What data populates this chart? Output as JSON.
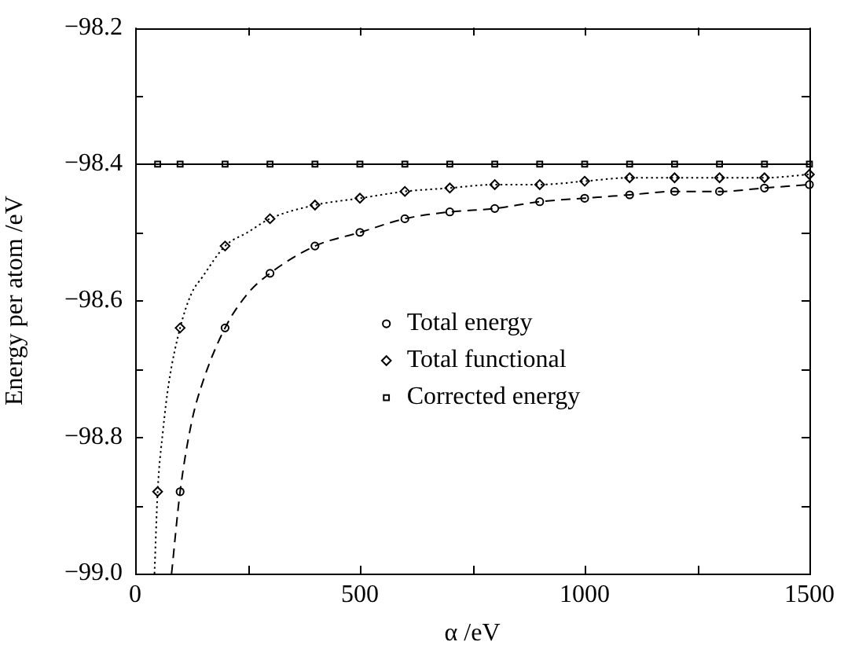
{
  "chart_data": {
    "type": "scatter",
    "xlabel": "α /eV",
    "ylabel": "Energy per atom /eV",
    "xlim": [
      0,
      1500
    ],
    "ylim": [
      -99.0,
      -98.2
    ],
    "xticks": [
      0,
      {
        "value": 250,
        "label": null
      },
      500,
      {
        "value": 750,
        "label": null
      },
      1000,
      {
        "value": 1250,
        "label": null
      },
      1500
    ],
    "yticks": [
      {
        "value": -99.0,
        "label": "−99.0"
      },
      {
        "value": -98.9,
        "label": null
      },
      {
        "value": -98.8,
        "label": "−98.8"
      },
      {
        "value": -98.7,
        "label": null
      },
      {
        "value": -98.6,
        "label": "−98.6"
      },
      {
        "value": -98.5,
        "label": null
      },
      {
        "value": -98.4,
        "label": "−98.4"
      },
      {
        "value": -98.3,
        "label": null
      },
      {
        "value": -98.2,
        "label": "−98.2"
      }
    ],
    "grid": false,
    "legend": "center",
    "series": [
      {
        "type": "line",
        "marker": "none",
        "line_style": "dashed",
        "color": "#000000",
        "x": [
          81,
          100,
          125,
          150,
          200,
          250,
          300,
          400,
          500,
          600,
          700,
          800,
          900,
          1000,
          1100,
          1200,
          1300,
          1400,
          1500
        ],
        "values": [
          -99.0,
          -98.88,
          -98.78,
          -98.72,
          -98.64,
          -98.59,
          -98.56,
          -98.52,
          -98.5,
          -98.48,
          -98.47,
          -98.465,
          -98.455,
          -98.45,
          -98.445,
          -98.44,
          -98.44,
          -98.435,
          -98.43
        ]
      },
      {
        "type": "line",
        "marker": "none",
        "line_style": "dotted",
        "color": "#000000",
        "x": [
          43,
          50,
          62,
          75,
          100,
          125,
          150,
          200,
          250,
          300,
          400,
          500,
          600,
          700,
          800,
          900,
          1000,
          1100,
          1200,
          1300,
          1400,
          1500
        ],
        "values": [
          -99.0,
          -98.88,
          -98.79,
          -98.72,
          -98.64,
          -98.59,
          -98.565,
          -98.52,
          -98.5,
          -98.48,
          -98.46,
          -98.45,
          -98.44,
          -98.435,
          -98.43,
          -98.43,
          -98.425,
          -98.42,
          -98.42,
          -98.42,
          -98.42,
          -98.415
        ]
      },
      {
        "type": "line",
        "marker": "none",
        "line_style": "solid",
        "color": "#000000",
        "x": [
          0,
          1500
        ],
        "values": [
          -98.4,
          -98.4
        ]
      },
      {
        "name": "Total energy",
        "type": "scatter",
        "marker": "circle",
        "color": "#000000",
        "x": [
          100,
          200,
          300,
          400,
          500,
          600,
          700,
          800,
          900,
          1000,
          1100,
          1200,
          1300,
          1400,
          1500
        ],
        "values": [
          -98.88,
          -98.64,
          -98.56,
          -98.52,
          -98.5,
          -98.48,
          -98.47,
          -98.465,
          -98.455,
          -98.45,
          -98.445,
          -98.44,
          -98.44,
          -98.435,
          -98.43
        ]
      },
      {
        "name": "Total functional",
        "type": "scatter",
        "marker": "diamond",
        "color": "#000000",
        "x": [
          50,
          100,
          200,
          300,
          400,
          500,
          600,
          700,
          800,
          900,
          1000,
          1100,
          1200,
          1300,
          1400,
          1500
        ],
        "values": [
          -98.88,
          -98.64,
          -98.52,
          -98.48,
          -98.46,
          -98.45,
          -98.44,
          -98.435,
          -98.43,
          -98.43,
          -98.425,
          -98.42,
          -98.42,
          -98.42,
          -98.42,
          -98.415
        ]
      },
      {
        "name": "Corrected energy",
        "type": "scatter",
        "marker": "square",
        "color": "#000000",
        "x": [
          50,
          100,
          200,
          300,
          400,
          500,
          600,
          700,
          800,
          900,
          1000,
          1100,
          1200,
          1300,
          1400,
          1500
        ],
        "values": [
          -98.4,
          -98.4,
          -98.4,
          -98.4,
          -98.4,
          -98.4,
          -98.4,
          -98.4,
          -98.4,
          -98.4,
          -98.4,
          -98.4,
          -98.4,
          -98.4,
          -98.4,
          -98.4
        ]
      }
    ]
  }
}
